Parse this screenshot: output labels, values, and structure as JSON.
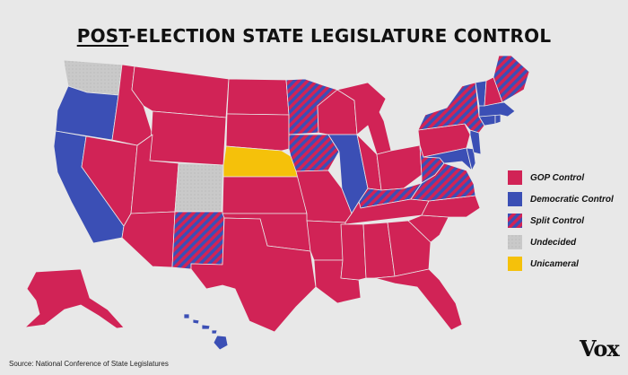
{
  "title": {
    "emphasis": "POST",
    "rest": "-ELECTION STATE LEGISLATURE CONTROL"
  },
  "colors": {
    "gop": "#d12356",
    "democratic": "#3b4fb5",
    "split_base": "#d12356",
    "split_stripe": "#3b4fb5",
    "undecided": "#c9c9c9",
    "unicameral": "#f5c10a",
    "background": "#e8e8e8",
    "border": "#e8e8e8"
  },
  "legend": {
    "items": [
      {
        "key": "gop",
        "label": "GOP Control"
      },
      {
        "key": "democratic",
        "label": "Democratic Control"
      },
      {
        "key": "split",
        "label": "Split Control"
      },
      {
        "key": "undecided",
        "label": "Undecided"
      },
      {
        "key": "unicameral",
        "label": "Unicameral"
      }
    ]
  },
  "states": {
    "AL": "gop",
    "AK": "gop",
    "AZ": "gop",
    "AR": "gop",
    "CA": "democratic",
    "CO": "undecided",
    "CT": "democratic",
    "DE": "democratic",
    "FL": "gop",
    "GA": "gop",
    "HI": "democratic",
    "ID": "gop",
    "IL": "democratic",
    "IN": "gop",
    "IA": "split",
    "KS": "gop",
    "KY": "split",
    "LA": "gop",
    "ME": "split",
    "MD": "democratic",
    "MA": "democratic",
    "MI": "gop",
    "MN": "split",
    "MS": "gop",
    "MO": "gop",
    "MT": "gop",
    "NE": "unicameral",
    "NV": "gop",
    "NH": "gop",
    "NJ": "democratic",
    "NM": "split",
    "NY": "split",
    "NC": "gop",
    "ND": "gop",
    "OH": "gop",
    "OK": "gop",
    "OR": "democratic",
    "PA": "gop",
    "RI": "democratic",
    "SC": "gop",
    "SD": "gop",
    "TN": "gop",
    "TX": "gop",
    "UT": "gop",
    "VT": "democratic",
    "VA": "split",
    "WA": "undecided",
    "WV": "split",
    "WI": "gop",
    "WY": "gop"
  },
  "source": "Source:  National Conference of State Legislatures",
  "brand": "Vox"
}
